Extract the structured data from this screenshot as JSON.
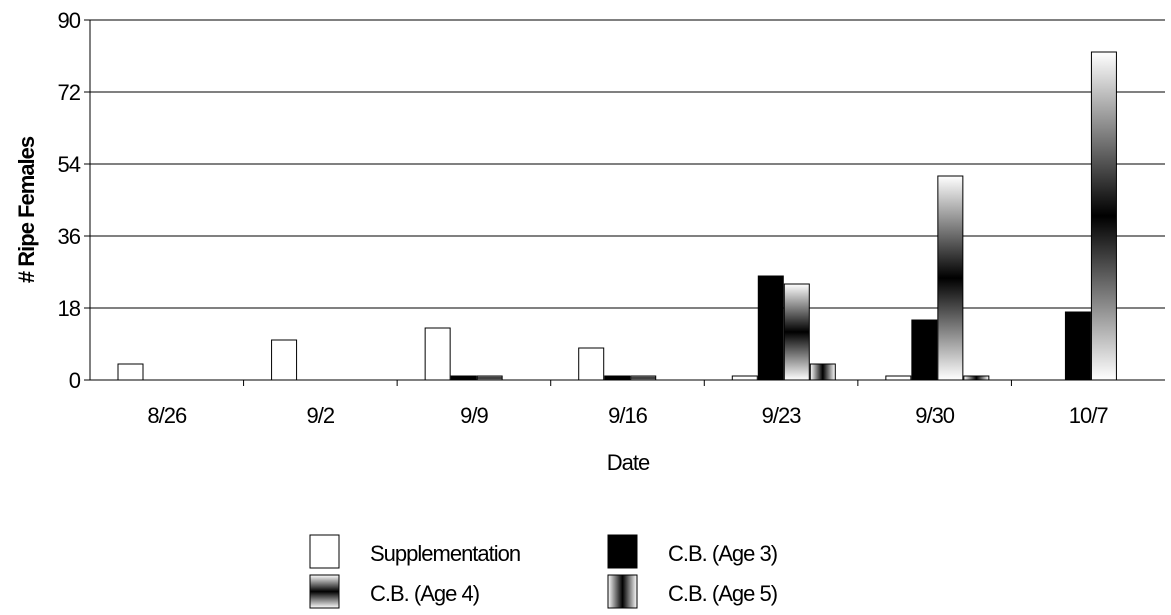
{
  "chart_data": {
    "type": "bar",
    "title": "",
    "xlabel": "Date",
    "ylabel": "# Ripe Females",
    "ylim": [
      0,
      90
    ],
    "yticks": [
      "0",
      "18",
      "36",
      "54",
      "72",
      "90"
    ],
    "grid": "horizontal",
    "legend_position": "bottom",
    "categories": [
      "8/26",
      "9/2",
      "9/9",
      "9/16",
      "9/23",
      "9/30",
      "10/7"
    ],
    "series": [
      {
        "name": "Supplementation",
        "values": [
          4,
          10,
          13,
          8,
          1,
          1,
          0
        ],
        "fill": "white"
      },
      {
        "name": "C.B. (Age 3)",
        "values": [
          0,
          0,
          1,
          1,
          26,
          15,
          17
        ],
        "fill": "black"
      },
      {
        "name": "C.B. (Age 4)",
        "values": [
          0,
          0,
          1,
          1,
          24,
          51,
          82
        ],
        "fill": "gradient-vertical"
      },
      {
        "name": "C.B. (Age 5)",
        "values": [
          0,
          0,
          0,
          0,
          4,
          1,
          0
        ],
        "fill": "gradient-horizontal"
      }
    ]
  }
}
